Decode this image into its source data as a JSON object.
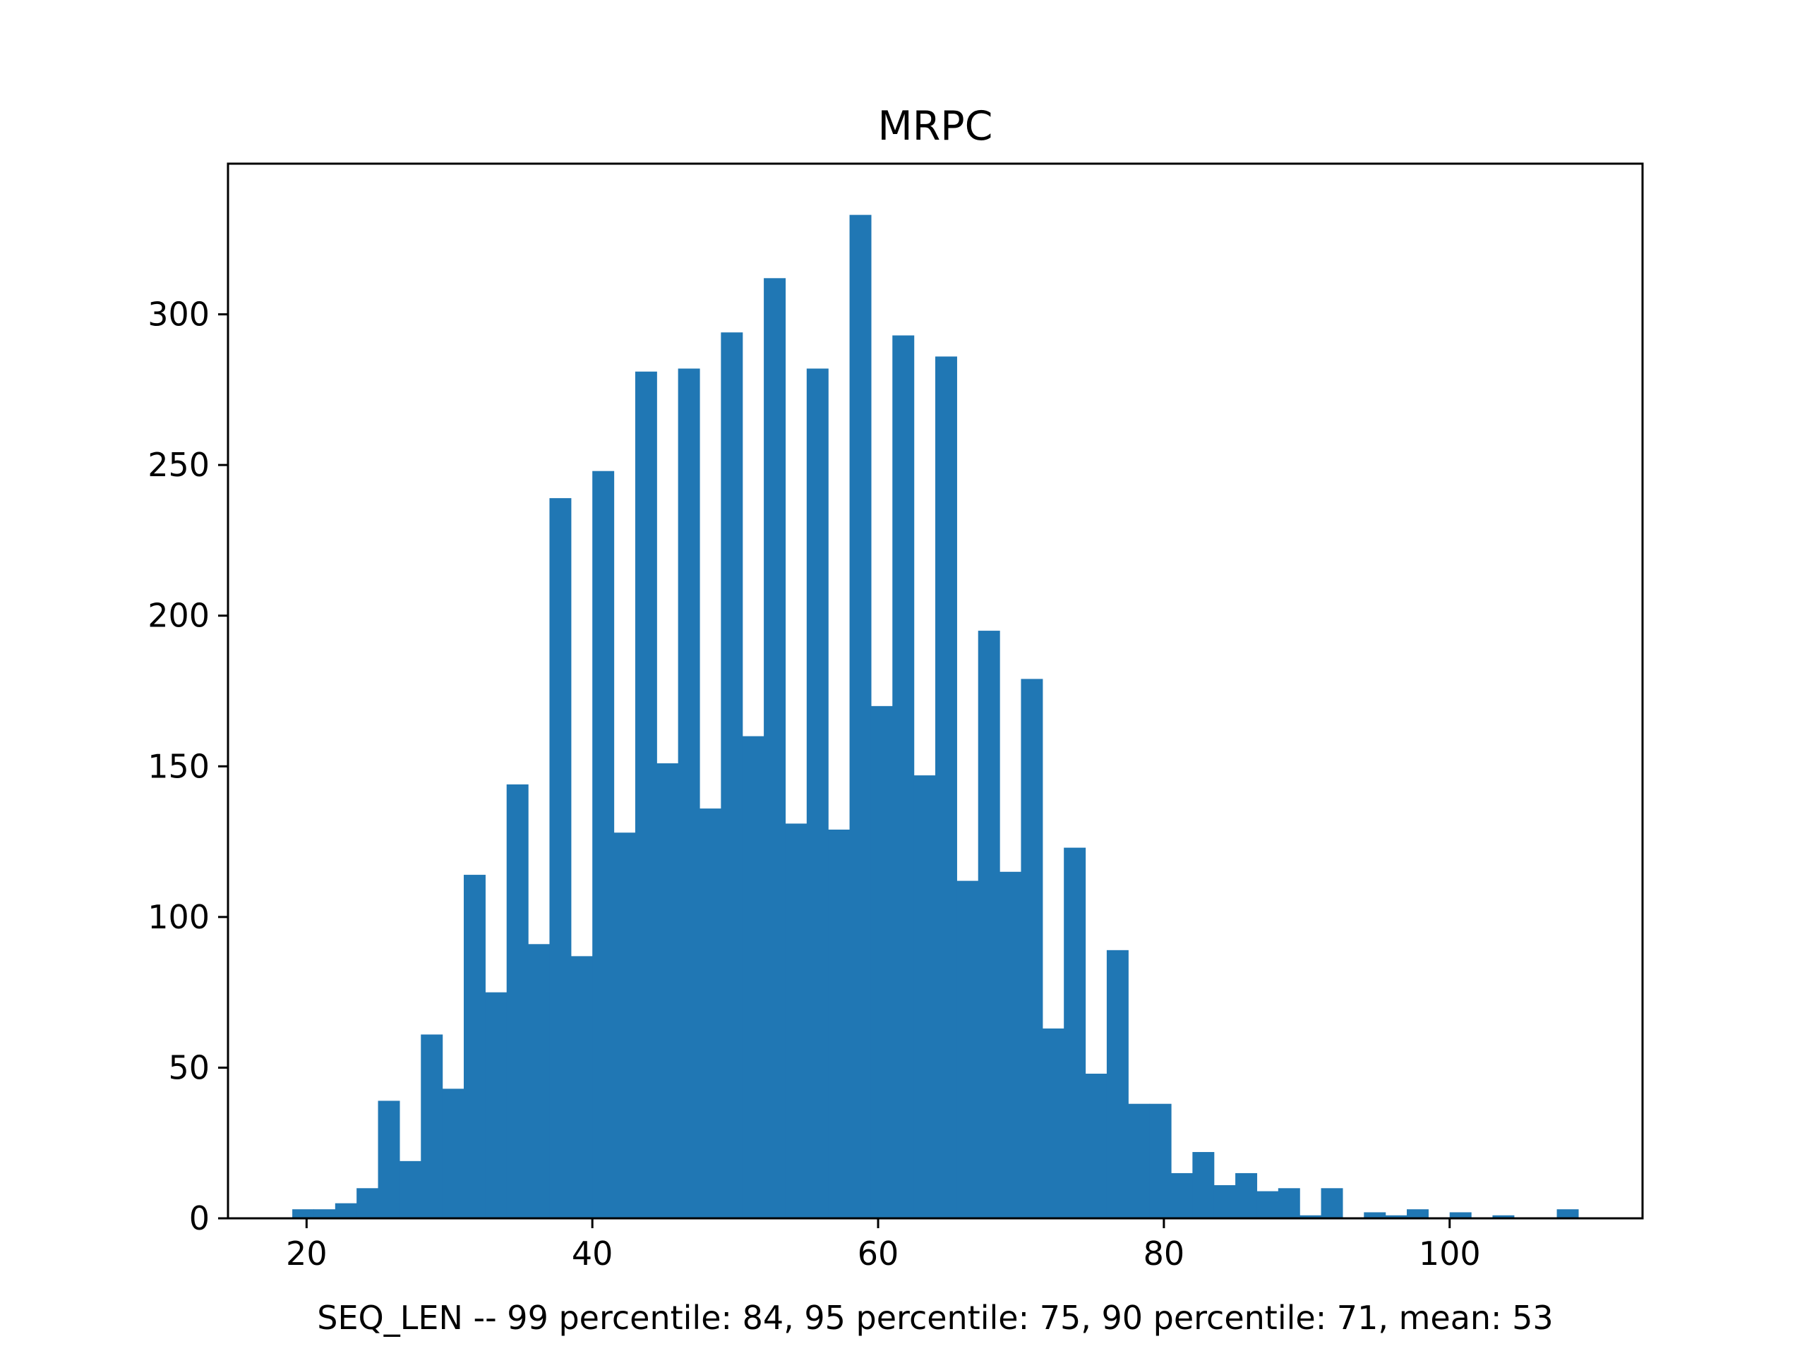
{
  "chart_data": {
    "type": "bar",
    "title": "MRPC",
    "xlabel": "SEQ_LEN  --  99 percentile: 84, 95 percentile: 75, 90 percentile: 71, mean: 53",
    "ylabel": "",
    "bar_color": "#2077b4",
    "xlim": [
      14.5,
      113.5
    ],
    "ylim": [
      0,
      350
    ],
    "xticks": [
      20,
      40,
      60,
      80,
      100
    ],
    "yticks": [
      0,
      50,
      100,
      150,
      200,
      250,
      300
    ],
    "bin_width": 1.5,
    "bins_start": [
      19.0,
      20.5,
      22.0,
      23.5,
      25.0,
      26.5,
      28.0,
      29.5,
      31.0,
      32.5,
      34.0,
      35.5,
      37.0,
      38.5,
      40.0,
      41.5,
      43.0,
      44.5,
      46.0,
      47.5,
      49.0,
      50.5,
      52.0,
      53.5,
      55.0,
      56.5,
      58.0,
      59.5,
      61.0,
      62.5,
      64.0,
      65.5,
      67.0,
      68.5,
      70.0,
      71.5,
      73.0,
      74.5,
      76.0,
      77.5,
      79.0,
      80.5,
      82.0,
      83.5,
      85.0,
      86.5,
      88.0,
      89.5,
      91.0,
      92.5,
      94.0,
      95.5,
      97.0,
      98.5,
      100.0,
      101.5,
      103.0,
      104.5,
      106.0,
      107.5
    ],
    "counts": [
      3,
      3,
      5,
      10,
      39,
      19,
      61,
      43,
      114,
      75,
      144,
      91,
      239,
      87,
      248,
      128,
      281,
      151,
      282,
      136,
      294,
      160,
      312,
      131,
      282,
      129,
      333,
      170,
      293,
      147,
      286,
      112,
      195,
      115,
      179,
      63,
      123,
      48,
      89,
      38,
      38,
      15,
      22,
      11,
      15,
      9,
      10,
      1,
      10,
      0,
      2,
      1,
      3,
      0,
      2,
      0,
      1,
      0,
      0,
      3
    ]
  }
}
